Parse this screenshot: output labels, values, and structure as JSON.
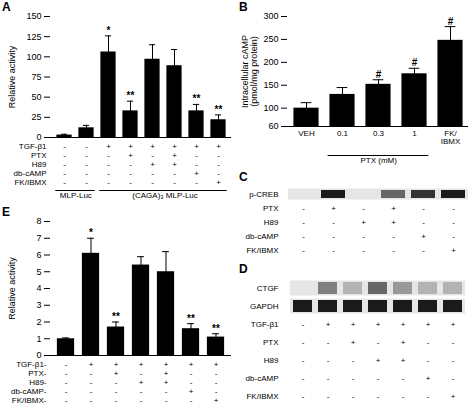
{
  "chart_data": [
    {
      "type": "bar",
      "title": "A",
      "y_label": "Relative activity",
      "categories": [
        null,
        null,
        null,
        null,
        null,
        null,
        null,
        null
      ],
      "values": [
        3,
        12,
        106,
        33,
        97,
        89,
        33,
        22
      ],
      "errors": [
        1,
        3,
        20,
        12,
        18,
        20,
        8,
        6
      ],
      "annotations": [
        null,
        null,
        "*",
        "**",
        null,
        null,
        "**",
        "**"
      ],
      "color": "#000000",
      "ylim": [
        0,
        150
      ],
      "yticks": [
        0,
        25,
        50,
        75,
        100,
        125,
        150
      ],
      "tick_labels": "y",
      "table": [
        {
          "name": "TGF-β1",
          "values": [
            "-",
            "-",
            "+",
            "+",
            "+",
            "+",
            "+",
            "+"
          ]
        },
        {
          "name": "PTX",
          "values": [
            "-",
            "-",
            "-",
            "+",
            "-",
            "+",
            "-",
            "-"
          ]
        },
        {
          "name": "H89",
          "values": [
            "-",
            "-",
            "-",
            "-",
            "+",
            "+",
            "-",
            "-"
          ]
        },
        {
          "name": "db-cAMP",
          "values": [
            "-",
            "-",
            "-",
            "-",
            "-",
            "-",
            "+",
            "-"
          ]
        },
        {
          "name": "FK/IBMX",
          "values": [
            "-",
            "-",
            "-",
            "-",
            "-",
            "-",
            "-",
            "+"
          ]
        }
      ],
      "group_labels": [
        "MLP-Luc",
        "MLP-Luc",
        "(CAGA)₃ MLP-Luc",
        "(CAGA)₃ MLP-Luc",
        "(CAGA)₃ MLP-Luc",
        "(CAGA)₃ MLP-Luc",
        "(CAGA)₃ MLP-Luc",
        "(CAGA)₃ MLP-Luc"
      ]
    },
    {
      "type": "bar",
      "title": "B",
      "y_label": "Intracellular cAMP\n(pmol/mg protein)",
      "categories": [
        "VEH",
        "0.1",
        "0.3",
        "1",
        "FK/\nIBMX"
      ],
      "values": [
        100,
        130,
        152,
        175,
        248
      ],
      "errors": [
        12,
        15,
        10,
        12,
        30
      ],
      "annotations": [
        null,
        null,
        "#",
        "#",
        "#"
      ],
      "color": "#000000",
      "ylim": [
        60,
        300
      ],
      "yticks": [
        60,
        100,
        150,
        200,
        250,
        300
      ],
      "group_labels": [
        null,
        "PTX (mM)",
        "PTX (mM)",
        "PTX (mM)",
        null
      ]
    },
    {
      "type": "blot",
      "title": "C",
      "series": [
        {
          "name": "p-CREB",
          "values": [
            null,
            0.9,
            null,
            0.6,
            0.8,
            0.9
          ]
        }
      ],
      "table": [
        {
          "name": "PTX",
          "values": [
            "-",
            "+",
            "-",
            "+",
            "-",
            "-"
          ]
        },
        {
          "name": "H89",
          "values": [
            "-",
            "-",
            "+",
            "+",
            "-",
            "-"
          ]
        },
        {
          "name": "db-cAMP",
          "values": [
            "-",
            "-",
            "-",
            "-",
            "+",
            "-"
          ]
        },
        {
          "name": "FK/IBMX",
          "values": [
            "-",
            "-",
            "-",
            "-",
            "-",
            "+"
          ]
        }
      ]
    },
    {
      "type": "blot",
      "title": "D",
      "series": [
        {
          "name": "CTGF",
          "values": [
            null,
            0.5,
            0.3,
            0.6,
            0.4,
            0.3,
            0.3
          ]
        },
        {
          "name": "GAPDH",
          "values": [
            0.9,
            0.9,
            0.9,
            0.9,
            0.9,
            0.9,
            0.9
          ]
        }
      ],
      "table": [
        {
          "name": "TGF-β1",
          "values": [
            "-",
            "+",
            "+",
            "+",
            "+",
            "+",
            "+"
          ]
        },
        {
          "name": "PTX",
          "values": [
            "-",
            "-",
            "+",
            "-",
            "+",
            "-",
            "-"
          ]
        },
        {
          "name": "H89",
          "values": [
            "-",
            "-",
            "-",
            "+",
            "+",
            "-",
            "-"
          ]
        },
        {
          "name": "db-cAMP",
          "values": [
            "-",
            "-",
            "-",
            "-",
            "-",
            "+",
            "-"
          ]
        },
        {
          "name": "FK/IBMX",
          "values": [
            "-",
            "-",
            "-",
            "-",
            "-",
            "-",
            "+"
          ]
        }
      ]
    },
    {
      "type": "bar",
      "title": "E",
      "y_label": "Relative activity",
      "categories": [
        null,
        null,
        null,
        null,
        null,
        null,
        null
      ],
      "values": [
        1.0,
        6.1,
        1.7,
        5.4,
        5.0,
        1.6,
        1.1
      ],
      "errors": [
        0.05,
        0.9,
        0.3,
        0.5,
        1.2,
        0.3,
        0.2
      ],
      "annotations": [
        null,
        "*",
        "**",
        null,
        null,
        "**",
        "**"
      ],
      "color": "#000000",
      "ylim": [
        0,
        8
      ],
      "yticks": [
        0,
        1,
        2,
        3,
        4,
        5,
        6,
        7,
        8
      ],
      "tick_labels": "y",
      "table": [
        {
          "name": "TGF-β1-",
          "values": [
            "-",
            "+",
            "+",
            "+",
            "+",
            "+",
            "+"
          ]
        },
        {
          "name": "PTX-",
          "values": [
            "-",
            "-",
            "+",
            "-",
            "+",
            "-",
            "-"
          ]
        },
        {
          "name": "H89-",
          "values": [
            "-",
            "-",
            "-",
            "+",
            "+",
            "-",
            "-"
          ]
        },
        {
          "name": "db-cAMP-",
          "values": [
            "-",
            "-",
            "-",
            "-",
            "-",
            "+",
            "-"
          ]
        },
        {
          "name": "FK/IBMX-",
          "values": [
            "-",
            "-",
            "-",
            "-",
            "-",
            "-",
            "+"
          ]
        }
      ]
    }
  ]
}
